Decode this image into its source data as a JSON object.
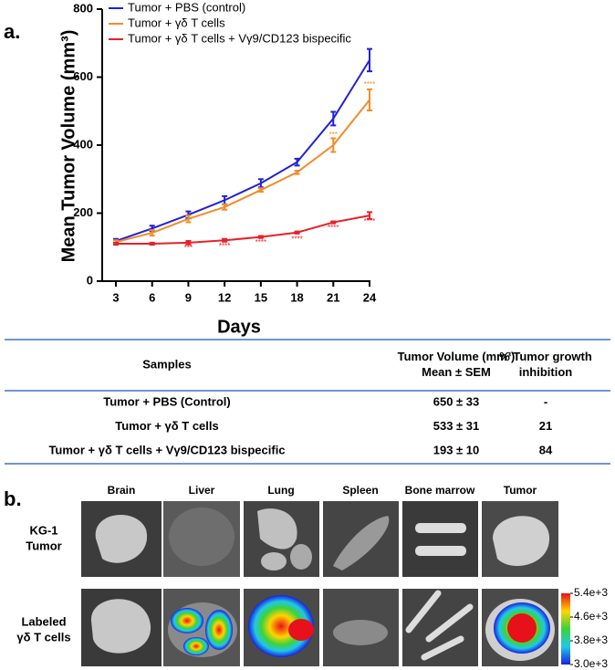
{
  "panel_labels": [
    "a.",
    "b."
  ],
  "chart_data": {
    "type": "line",
    "x_label": "Days",
    "y_label": "Mean Tumor Volume (mm³)",
    "x": [
      3,
      6,
      9,
      12,
      15,
      18,
      21,
      24
    ],
    "xlim": [
      3,
      24
    ],
    "xticks": [
      3,
      6,
      9,
      12,
      15,
      18,
      21,
      24
    ],
    "ylim": [
      0,
      800
    ],
    "yticks": [
      0,
      200,
      400,
      600,
      800
    ],
    "series": [
      {
        "name": "Tumor + PBS (control)",
        "color": "#1f22d6",
        "values": [
          118,
          155,
          195,
          238,
          288,
          350,
          478,
          650
        ],
        "errors": [
          6,
          8,
          10,
          12,
          12,
          10,
          20,
          33
        ]
      },
      {
        "name": "Tumor + γδ T cells",
        "color": "#f28c28",
        "values": [
          115,
          142,
          183,
          218,
          268,
          320,
          400,
          533
        ],
        "errors": [
          5,
          8,
          10,
          8,
          5,
          5,
          20,
          31
        ]
      },
      {
        "name": "Tumor + γδ T cells  + Vγ9/CD123 bispecific",
        "color": "#e8202a",
        "values": [
          110,
          110,
          113,
          120,
          130,
          143,
          173,
          193
        ],
        "errors": [
          3,
          3,
          5,
          4,
          3,
          3,
          3,
          10
        ]
      }
    ],
    "annotations": [
      {
        "text": "***",
        "x": 9,
        "y": 97,
        "color": "#e8202a"
      },
      {
        "text": "****",
        "x": 12,
        "y": 102,
        "color": "#e8202a"
      },
      {
        "text": "****",
        "x": 15,
        "y": 113,
        "color": "#e8202a"
      },
      {
        "text": "****",
        "x": 18,
        "y": 123,
        "color": "#e8202a"
      },
      {
        "text": "****",
        "x": 21,
        "y": 156,
        "color": "#e8202a"
      },
      {
        "text": "****",
        "x": 24,
        "y": 175,
        "color": "#e8202a"
      },
      {
        "text": "***",
        "x": 21,
        "y": 430,
        "color": "#f28c28"
      },
      {
        "text": "****",
        "x": 24,
        "y": 577,
        "color": "#f28c28"
      }
    ]
  },
  "table": {
    "header": [
      [
        "Samples"
      ],
      [
        "Tumor Volume (mm³)",
        "Mean ± SEM"
      ],
      [
        "% Tumor growth",
        "inhibition"
      ]
    ],
    "rows": [
      [
        "Tumor + PBS (Control)",
        "650 ± 33",
        "-"
      ],
      [
        "Tumor + γδ T cells",
        "533 ± 31",
        "21"
      ],
      [
        "Tumor + γδ T cells + Vγ9/CD123 bispecific",
        "193 ± 10",
        "84"
      ]
    ]
  },
  "imaging": {
    "columns": [
      "Brain",
      "Liver",
      "Lung",
      "Spleen",
      "Bone marrow",
      "Tumor"
    ],
    "rows": [
      [
        "KG-1",
        "Tumor"
      ],
      [
        "Labeled",
        "γδ T cells"
      ]
    ],
    "colorbar": {
      "lim": [
        3000,
        5400
      ],
      "ticks": [
        {
          "value": 5400,
          "label": "5.4e+3"
        },
        {
          "value": 4600,
          "label": "4.6e+3"
        },
        {
          "value": 3800,
          "label": "3.8e+3"
        },
        {
          "value": 3000,
          "label": "3.0e+3"
        }
      ]
    }
  }
}
